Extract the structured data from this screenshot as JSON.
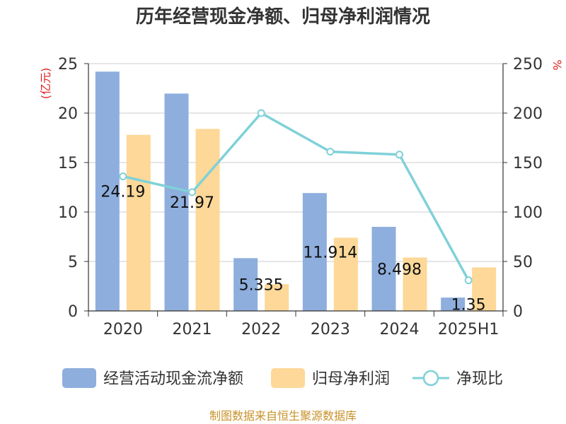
{
  "chart_data": {
    "type": "bar",
    "title": "历年经营现金净额、归母净利润情况",
    "categories": [
      "2020",
      "2021",
      "2022",
      "2023",
      "2024",
      "2025H1"
    ],
    "series": [
      {
        "name": "经营活动现金流净额",
        "kind": "bar",
        "axis": "left",
        "color": "#8eaedd",
        "values": [
          24.19,
          21.97,
          5.335,
          11.914,
          8.498,
          1.35
        ],
        "labels": [
          "24.19",
          "21.97",
          "5.335",
          "11.914",
          "8.498",
          "1.35"
        ]
      },
      {
        "name": "归母净利润",
        "kind": "bar",
        "axis": "left",
        "color": "#fdd898",
        "values": [
          17.8,
          18.4,
          2.7,
          7.4,
          5.4,
          4.4
        ]
      },
      {
        "name": "净现比",
        "kind": "line",
        "axis": "right",
        "color": "#7fd1d8",
        "values": [
          136,
          120,
          200,
          161,
          158,
          31
        ]
      }
    ],
    "y_left": {
      "unit": "(亿元)",
      "ylim": [
        0,
        25
      ],
      "ticks": [
        0,
        5,
        10,
        15,
        20,
        25
      ],
      "unit_color": "#e02020"
    },
    "y_right": {
      "unit": "%",
      "ylim": [
        0,
        250
      ],
      "ticks": [
        0,
        50,
        100,
        150,
        200,
        250
      ],
      "unit_color": "#e02020"
    },
    "grid": true,
    "legend_position": "bottom",
    "source": "制图数据来自恒生聚源数据库",
    "source_color": "#c8922a"
  }
}
